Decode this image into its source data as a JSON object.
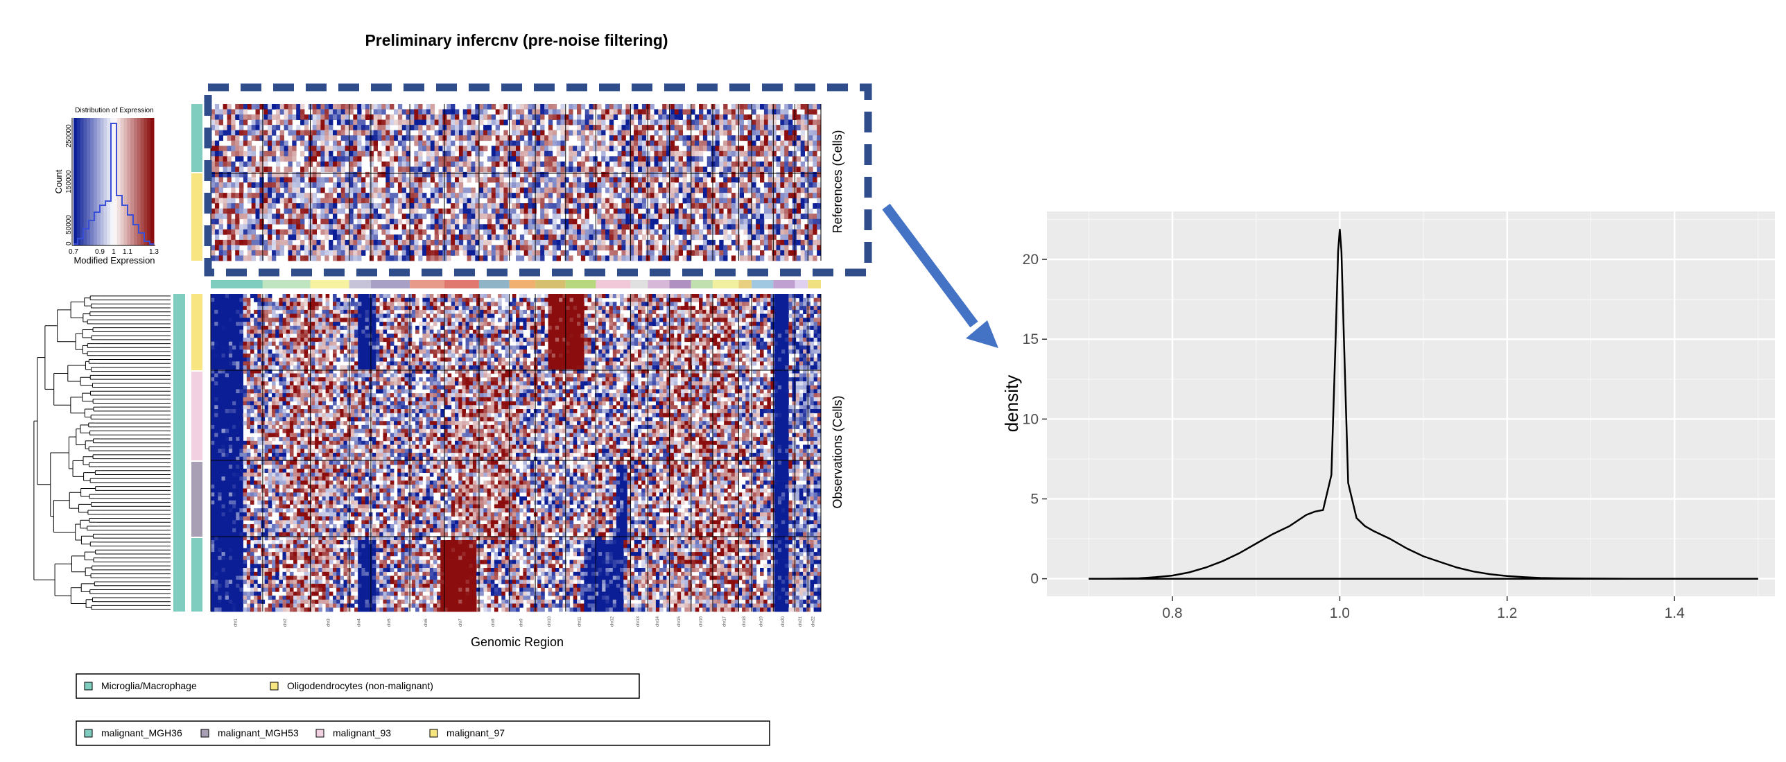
{
  "infercnv": {
    "title": "Preliminary infercnv (pre-noise filtering)",
    "xlabel": "Genomic Region",
    "references_label": "References (Cells)",
    "observations_label": "Observations (Cells)",
    "chromosomes": [
      "chr1",
      "chr2",
      "chr3",
      "chr4",
      "chr5",
      "chr6",
      "chr7",
      "chr8",
      "chr9",
      "chr10",
      "chr11",
      "chr12",
      "chr13",
      "chr14",
      "chr15",
      "chr16",
      "chr17",
      "chr18",
      "chr19",
      "chr20",
      "chr21",
      "chr22"
    ],
    "colors": {
      "low": "#0b1e96",
      "mid": "#ffffff",
      "high": "#8b0d0d",
      "outline": "#2f4d8a",
      "arrow": "#4472c4"
    }
  },
  "expression_legend": {
    "title": "Distribution of Expression",
    "xlabel": "Modified Expression",
    "ylabel": "Count",
    "x_ticks": [
      "0.7",
      "0.9",
      "1",
      "1.1",
      "1.3"
    ],
    "y_ticks": [
      "0",
      "50000",
      "150000",
      "250000"
    ]
  },
  "legend_references": {
    "items": [
      {
        "label": "Microglia/Macrophage",
        "color": "#7ecdbf"
      },
      {
        "label": "Oligodendrocytes (non-malignant)",
        "color": "#f6e580"
      }
    ]
  },
  "legend_observations": {
    "items": [
      {
        "label": "malignant_MGH36",
        "color": "#7ecdbf"
      },
      {
        "label": "malignant_MGH53",
        "color": "#a99fb5"
      },
      {
        "label": "malignant_93",
        "color": "#f1d0e2"
      },
      {
        "label": "malignant_97",
        "color": "#f6e580"
      }
    ]
  },
  "chart_data": {
    "type": "line",
    "title": "",
    "xlabel": "",
    "ylabel": "density",
    "xlim": [
      0.65,
      1.52
    ],
    "ylim": [
      -1.1,
      23.0
    ],
    "x_ticks": [
      0.8,
      1.0,
      1.2,
      1.4
    ],
    "x_tick_labels": [
      "0.8",
      "1.0",
      "1.2",
      "1.4"
    ],
    "y_ticks": [
      0,
      5,
      10,
      15,
      20
    ],
    "y_tick_labels": [
      "0",
      "5",
      "10",
      "15",
      "20"
    ],
    "grid": true,
    "series": [
      {
        "x": [
          0.7,
          0.72,
          0.74,
          0.76,
          0.78,
          0.8,
          0.82,
          0.84,
          0.86,
          0.88,
          0.9,
          0.92,
          0.94,
          0.96,
          0.97,
          0.98,
          0.99,
          0.995,
          0.998,
          1.0,
          1.002,
          1.005,
          1.01,
          1.02,
          1.03,
          1.04,
          1.06,
          1.08,
          1.1,
          1.12,
          1.14,
          1.16,
          1.18,
          1.2,
          1.22,
          1.24,
          1.26,
          1.3,
          1.35,
          1.4,
          1.45,
          1.5
        ],
        "y": [
          0,
          0,
          0.01,
          0.03,
          0.1,
          0.2,
          0.4,
          0.7,
          1.1,
          1.6,
          2.2,
          2.8,
          3.3,
          4.0,
          4.2,
          4.3,
          6.5,
          15,
          20.5,
          21.9,
          20.5,
          15,
          6,
          3.8,
          3.3,
          3.0,
          2.5,
          1.9,
          1.4,
          1.05,
          0.7,
          0.45,
          0.28,
          0.17,
          0.1,
          0.05,
          0.03,
          0.01,
          0,
          0,
          0,
          0
        ]
      }
    ]
  }
}
